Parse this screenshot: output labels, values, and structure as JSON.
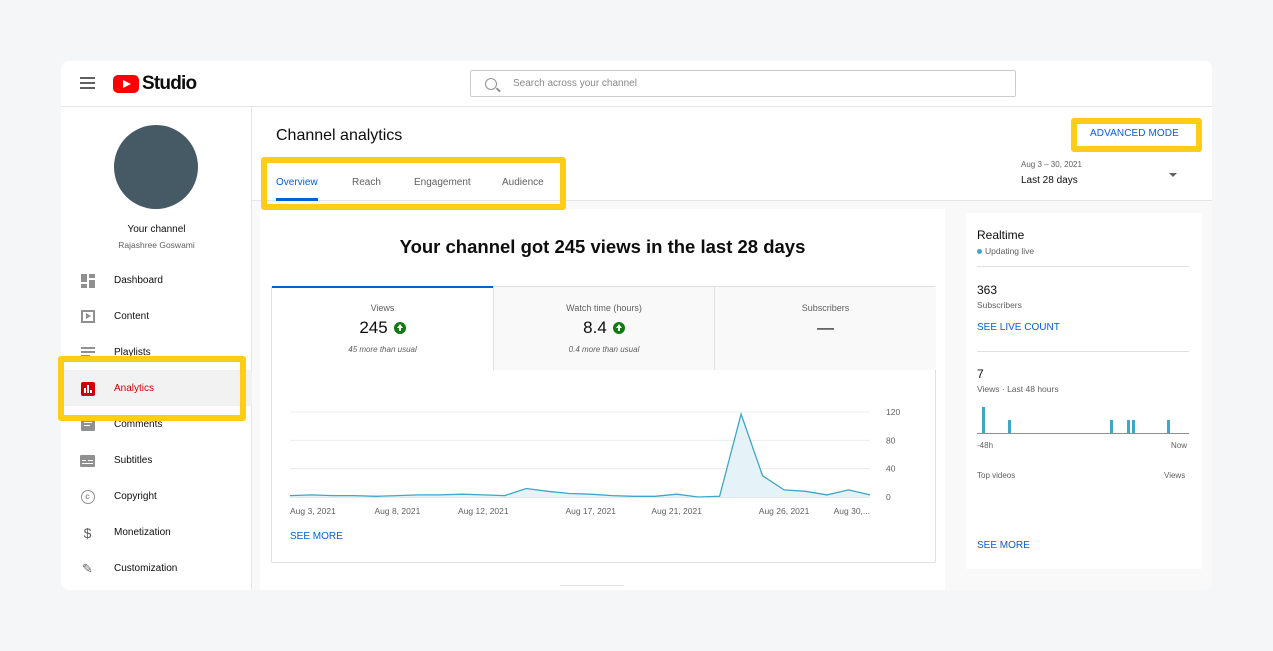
{
  "app": {
    "logo_text": "Studio",
    "search_placeholder": "Search across your channel"
  },
  "sidebar": {
    "channel_title": "Your channel",
    "channel_name": "Rajashree Goswami",
    "items": [
      {
        "label": "Dashboard",
        "icon": "dashboard-icon"
      },
      {
        "label": "Content",
        "icon": "content-icon"
      },
      {
        "label": "Playlists",
        "icon": "playlists-icon"
      },
      {
        "label": "Analytics",
        "icon": "analytics-icon",
        "active": true
      },
      {
        "label": "Comments",
        "icon": "comments-icon"
      },
      {
        "label": "Subtitles",
        "icon": "subtitles-icon"
      },
      {
        "label": "Copyright",
        "icon": "copyright-icon"
      },
      {
        "label": "Monetization",
        "icon": "monetization-icon"
      },
      {
        "label": "Customization",
        "icon": "customization-icon"
      }
    ]
  },
  "header": {
    "title": "Channel analytics",
    "advanced_mode": "ADVANCED MODE",
    "tabs": [
      "Overview",
      "Reach",
      "Engagement",
      "Audience"
    ],
    "active_tab": "Overview",
    "date_range": "Aug 3 – 30, 2021",
    "date_label": "Last 28 days"
  },
  "summary": {
    "headline": "Your channel got 245 views in the last 28 days",
    "metrics": [
      {
        "name": "Views",
        "value": "245",
        "sub": "45 more than usual",
        "trend": "up"
      },
      {
        "name": "Watch time (hours)",
        "value": "8.4",
        "sub": "0.4 more than usual",
        "trend": "up"
      },
      {
        "name": "Subscribers",
        "value": "—",
        "sub": "",
        "trend": "none"
      }
    ],
    "see_more": "SEE MORE"
  },
  "chart_data": {
    "type": "area",
    "x": [
      "Aug 3",
      "Aug 4",
      "Aug 5",
      "Aug 6",
      "Aug 7",
      "Aug 8",
      "Aug 9",
      "Aug 10",
      "Aug 11",
      "Aug 12",
      "Aug 13",
      "Aug 14",
      "Aug 15",
      "Aug 16",
      "Aug 17",
      "Aug 18",
      "Aug 19",
      "Aug 20",
      "Aug 21",
      "Aug 22",
      "Aug 23",
      "Aug 24",
      "Aug 25",
      "Aug 26",
      "Aug 27",
      "Aug 28",
      "Aug 29",
      "Aug 30"
    ],
    "series": [
      {
        "values": [
          2,
          3,
          2,
          2,
          1,
          2,
          3,
          3,
          4,
          3,
          2,
          12,
          8,
          5,
          4,
          2,
          1,
          1,
          4,
          0,
          1,
          117,
          30,
          10,
          8,
          3,
          10,
          3
        ]
      }
    ],
    "x_tick_labels": [
      "Aug 3, 2021",
      "Aug 8, 2021",
      "Aug 12, 2021",
      "Aug 17, 2021",
      "Aug 21, 2021",
      "Aug 26, 2021",
      "Aug 30,..."
    ],
    "y_ticks": [
      0,
      40,
      80,
      120
    ],
    "ylim": [
      0,
      120
    ],
    "title": "",
    "xlabel": "",
    "ylabel": "",
    "color": "#3ea6c7",
    "fill": "#e5f3f8",
    "grid": true
  },
  "realtime": {
    "title": "Realtime",
    "live": "Updating live",
    "subscribers": "363",
    "subscribers_label": "Subscribers",
    "see_live_count": "SEE LIVE COUNT",
    "views": "7",
    "views_label": "Views · Last 48 hours",
    "axis_left": "-48h",
    "axis_right": "Now",
    "top_videos": "Top videos",
    "top_videos_col": "Views",
    "see_more": "SEE MORE",
    "bar_color": "#3ea6c7"
  },
  "highlight_color": "#ffcc17"
}
